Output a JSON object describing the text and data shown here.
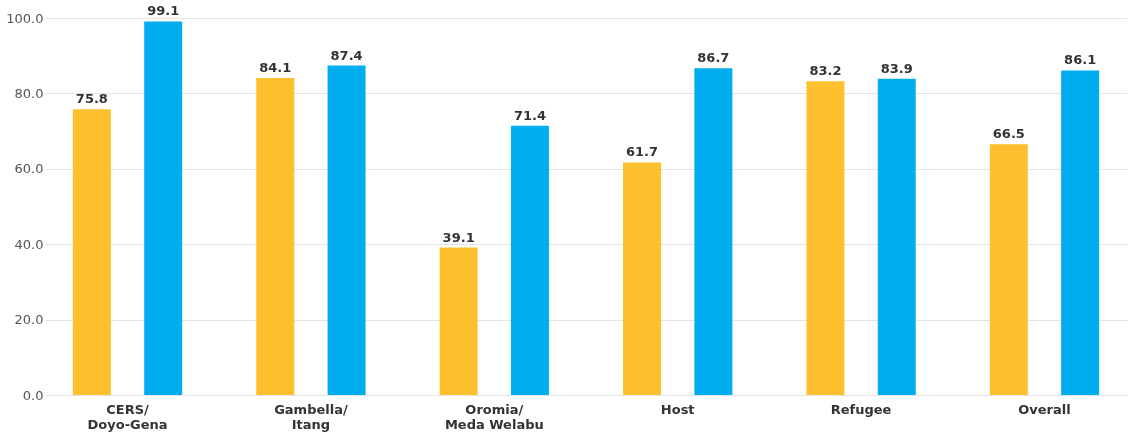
{
  "chart_data": {
    "type": "bar",
    "categories": [
      "CERS/\nDoyo-Gena",
      "Gambella/\nItang",
      "Oromia/\nMeda Welabu",
      "Host",
      "Refugee",
      "Overall"
    ],
    "series": [
      {
        "color": "#fec12d",
        "values": [
          75.8,
          84.1,
          39.1,
          61.7,
          83.2,
          66.5
        ]
      },
      {
        "color": "#00aeef",
        "values": [
          99.1,
          87.4,
          71.4,
          86.7,
          83.9,
          86.1
        ]
      }
    ],
    "ylim": [
      0,
      100
    ],
    "yticks": [
      {
        "value": 0,
        "label": "0.0"
      },
      {
        "value": 20,
        "label": "20.0"
      },
      {
        "value": 40,
        "label": "40.0"
      },
      {
        "value": 60,
        "label": "60.0"
      },
      {
        "value": 80,
        "label": "80.0"
      },
      {
        "value": 100,
        "label": "100.0"
      }
    ],
    "grid": "y",
    "data_labels": true,
    "legend": false
  }
}
